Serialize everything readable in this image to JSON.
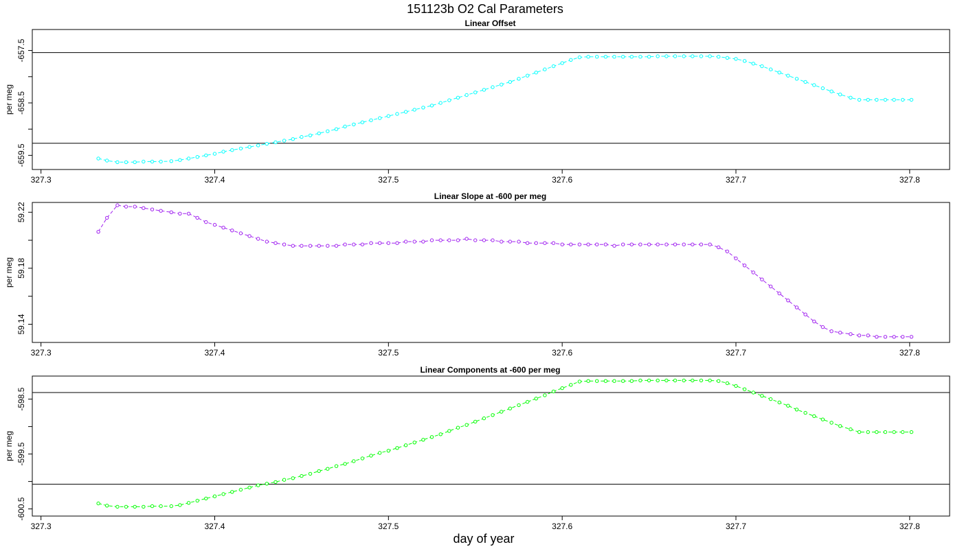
{
  "figure": {
    "title": "151123b   O2 Cal Parameters",
    "xlabel": "day of year"
  },
  "chart_data": [
    {
      "type": "line",
      "title": "Linear Offset",
      "ylabel": "per meg",
      "color": "#00ffff",
      "xlim": [
        327.295,
        327.823
      ],
      "ylim": [
        -659.77,
        -657.1
      ],
      "xticks": [
        327.3,
        327.4,
        327.5,
        327.6,
        327.7,
        327.8
      ],
      "xtick_labels": [
        "327.3",
        "327.4",
        "327.5",
        "327.6",
        "327.7",
        "327.8"
      ],
      "yticks": [
        -659.5,
        -659.0,
        -658.5,
        -658.0,
        -657.5
      ],
      "ytick_labels": [
        "-659.5",
        "",
        "-658.5",
        "",
        "-657.5"
      ],
      "hlines": [
        -657.54,
        -659.27
      ],
      "x": [
        327.333,
        327.338,
        327.344,
        327.349,
        327.354,
        327.359,
        327.364,
        327.369,
        327.375,
        327.38,
        327.385,
        327.39,
        327.395,
        327.4,
        327.405,
        327.41,
        327.415,
        327.42,
        327.425,
        327.43,
        327.435,
        327.44,
        327.445,
        327.45,
        327.455,
        327.46,
        327.465,
        327.47,
        327.475,
        327.48,
        327.485,
        327.49,
        327.495,
        327.5,
        327.505,
        327.51,
        327.515,
        327.52,
        327.525,
        327.53,
        327.535,
        327.54,
        327.545,
        327.55,
        327.555,
        327.56,
        327.565,
        327.57,
        327.575,
        327.58,
        327.585,
        327.59,
        327.595,
        327.6,
        327.605,
        327.61,
        327.615,
        327.62,
        327.625,
        327.63,
        327.635,
        327.64,
        327.645,
        327.65,
        327.655,
        327.66,
        327.665,
        327.67,
        327.675,
        327.68,
        327.685,
        327.69,
        327.695,
        327.7,
        327.705,
        327.71,
        327.715,
        327.72,
        327.725,
        327.73,
        327.735,
        327.74,
        327.745,
        327.75,
        327.755,
        327.76,
        327.766,
        327.771,
        327.776,
        327.781,
        327.786,
        327.791,
        327.796,
        327.801
      ],
      "y": [
        -659.56,
        -659.6,
        -659.63,
        -659.63,
        -659.63,
        -659.62,
        -659.62,
        -659.62,
        -659.61,
        -659.59,
        -659.56,
        -659.53,
        -659.5,
        -659.47,
        -659.43,
        -659.4,
        -659.37,
        -659.34,
        -659.31,
        -659.28,
        -659.25,
        -659.22,
        -659.19,
        -659.15,
        -659.12,
        -659.08,
        -659.04,
        -659.0,
        -658.95,
        -658.91,
        -658.87,
        -658.83,
        -658.79,
        -658.75,
        -658.71,
        -658.67,
        -658.63,
        -658.59,
        -658.55,
        -658.5,
        -658.45,
        -658.4,
        -658.35,
        -658.3,
        -658.25,
        -658.2,
        -658.15,
        -658.1,
        -658.04,
        -657.98,
        -657.92,
        -657.86,
        -657.8,
        -657.74,
        -657.68,
        -657.63,
        -657.62,
        -657.62,
        -657.62,
        -657.62,
        -657.62,
        -657.62,
        -657.62,
        -657.62,
        -657.61,
        -657.61,
        -657.61,
        -657.61,
        -657.61,
        -657.61,
        -657.61,
        -657.62,
        -657.64,
        -657.66,
        -657.7,
        -657.75,
        -657.8,
        -657.86,
        -657.92,
        -657.98,
        -658.04,
        -658.1,
        -658.16,
        -658.22,
        -658.28,
        -658.34,
        -658.4,
        -658.44,
        -658.44,
        -658.44,
        -658.44,
        -658.44,
        -658.44,
        -658.44
      ]
    },
    {
      "type": "line",
      "title": "Linear Slope at -600 per meg",
      "ylabel": "per meg",
      "color": "#a020f0",
      "xlim": [
        327.295,
        327.823
      ],
      "ylim": [
        59.127,
        59.227
      ],
      "xticks": [
        327.3,
        327.4,
        327.5,
        327.6,
        327.7,
        327.8
      ],
      "xtick_labels": [
        "327.3",
        "327.4",
        "327.5",
        "327.6",
        "327.7",
        "327.8"
      ],
      "yticks": [
        59.14,
        59.16,
        59.18,
        59.2,
        59.22
      ],
      "ytick_labels": [
        "59.14",
        "",
        "59.18",
        "",
        "59.22"
      ],
      "hlines": [],
      "x": [
        327.333,
        327.338,
        327.344,
        327.349,
        327.354,
        327.359,
        327.364,
        327.369,
        327.375,
        327.38,
        327.385,
        327.39,
        327.395,
        327.4,
        327.405,
        327.41,
        327.415,
        327.42,
        327.425,
        327.43,
        327.435,
        327.44,
        327.445,
        327.45,
        327.455,
        327.46,
        327.465,
        327.47,
        327.475,
        327.48,
        327.485,
        327.49,
        327.495,
        327.5,
        327.505,
        327.51,
        327.515,
        327.52,
        327.525,
        327.53,
        327.535,
        327.54,
        327.545,
        327.55,
        327.555,
        327.56,
        327.565,
        327.57,
        327.575,
        327.58,
        327.585,
        327.59,
        327.595,
        327.6,
        327.605,
        327.61,
        327.615,
        327.62,
        327.625,
        327.63,
        327.635,
        327.64,
        327.645,
        327.65,
        327.655,
        327.66,
        327.665,
        327.67,
        327.675,
        327.68,
        327.685,
        327.69,
        327.695,
        327.7,
        327.705,
        327.71,
        327.715,
        327.72,
        327.725,
        327.73,
        327.735,
        327.74,
        327.745,
        327.75,
        327.755,
        327.76,
        327.766,
        327.771,
        327.776,
        327.781,
        327.786,
        327.791,
        327.796,
        327.801
      ],
      "y": [
        59.206,
        59.216,
        59.225,
        59.224,
        59.224,
        59.223,
        59.222,
        59.221,
        59.22,
        59.219,
        59.219,
        59.216,
        59.213,
        59.211,
        59.209,
        59.207,
        59.205,
        59.203,
        59.201,
        59.199,
        59.198,
        59.197,
        59.196,
        59.196,
        59.196,
        59.196,
        59.196,
        59.196,
        59.197,
        59.197,
        59.197,
        59.198,
        59.198,
        59.198,
        59.198,
        59.199,
        59.199,
        59.199,
        59.2,
        59.2,
        59.2,
        59.2,
        59.201,
        59.2,
        59.2,
        59.2,
        59.199,
        59.199,
        59.199,
        59.198,
        59.198,
        59.198,
        59.198,
        59.197,
        59.197,
        59.197,
        59.197,
        59.197,
        59.197,
        59.196,
        59.197,
        59.197,
        59.197,
        59.197,
        59.197,
        59.197,
        59.197,
        59.197,
        59.197,
        59.197,
        59.197,
        59.195,
        59.192,
        59.187,
        59.182,
        59.177,
        59.172,
        59.167,
        59.162,
        59.157,
        59.152,
        59.147,
        59.142,
        59.138,
        59.135,
        59.134,
        59.133,
        59.132,
        59.132,
        59.131,
        59.131,
        59.131,
        59.131,
        59.131
      ]
    },
    {
      "type": "line",
      "title": "Linear Components at -600 per meg",
      "ylabel": "per meg",
      "color": "#00ff00",
      "xlim": [
        327.295,
        327.823
      ],
      "ylim": [
        -600.63,
        -598.08
      ],
      "xticks": [
        327.3,
        327.4,
        327.5,
        327.6,
        327.7,
        327.8
      ],
      "xtick_labels": [
        "327.3",
        "327.4",
        "327.5",
        "327.6",
        "327.7",
        "327.8"
      ],
      "yticks": [
        -600.5,
        -600.0,
        -599.5,
        -599.0,
        -598.5
      ],
      "ytick_labels": [
        "-600.5",
        "",
        "-599.5",
        "",
        "-598.5"
      ],
      "hlines": [
        -598.38,
        -600.05
      ],
      "x": [
        327.333,
        327.338,
        327.344,
        327.349,
        327.354,
        327.359,
        327.364,
        327.369,
        327.375,
        327.38,
        327.385,
        327.39,
        327.395,
        327.4,
        327.405,
        327.41,
        327.415,
        327.42,
        327.425,
        327.43,
        327.435,
        327.44,
        327.445,
        327.45,
        327.455,
        327.46,
        327.465,
        327.47,
        327.475,
        327.48,
        327.485,
        327.49,
        327.495,
        327.5,
        327.505,
        327.51,
        327.515,
        327.52,
        327.525,
        327.53,
        327.535,
        327.54,
        327.545,
        327.55,
        327.555,
        327.56,
        327.565,
        327.57,
        327.575,
        327.58,
        327.585,
        327.59,
        327.595,
        327.6,
        327.605,
        327.61,
        327.615,
        327.62,
        327.625,
        327.63,
        327.635,
        327.64,
        327.645,
        327.65,
        327.655,
        327.66,
        327.665,
        327.67,
        327.675,
        327.68,
        327.685,
        327.69,
        327.695,
        327.7,
        327.705,
        327.71,
        327.715,
        327.72,
        327.725,
        327.73,
        327.735,
        327.74,
        327.745,
        327.75,
        327.755,
        327.76,
        327.766,
        327.771,
        327.776,
        327.781,
        327.786,
        327.791,
        327.796,
        327.801
      ],
      "y": [
        -600.4,
        -600.44,
        -600.46,
        -600.46,
        -600.46,
        -600.46,
        -600.45,
        -600.45,
        -600.45,
        -600.43,
        -600.39,
        -600.35,
        -600.31,
        -600.27,
        -600.23,
        -600.19,
        -600.15,
        -600.11,
        -600.07,
        -600.04,
        -600.01,
        -599.97,
        -599.94,
        -599.9,
        -599.86,
        -599.81,
        -599.77,
        -599.72,
        -599.68,
        -599.63,
        -599.58,
        -599.53,
        -599.48,
        -599.44,
        -599.39,
        -599.34,
        -599.29,
        -599.24,
        -599.19,
        -599.14,
        -599.08,
        -599.02,
        -598.97,
        -598.91,
        -598.85,
        -598.79,
        -598.73,
        -598.67,
        -598.61,
        -598.55,
        -598.49,
        -598.43,
        -598.36,
        -598.3,
        -598.24,
        -598.18,
        -598.17,
        -598.17,
        -598.17,
        -598.17,
        -598.17,
        -598.17,
        -598.16,
        -598.16,
        -598.16,
        -598.16,
        -598.16,
        -598.16,
        -598.16,
        -598.16,
        -598.16,
        -598.17,
        -598.21,
        -598.26,
        -598.32,
        -598.38,
        -598.44,
        -598.5,
        -598.56,
        -598.62,
        -598.69,
        -598.75,
        -598.81,
        -598.87,
        -598.93,
        -598.99,
        -599.05,
        -599.1,
        -599.1,
        -599.1,
        -599.1,
        -599.1,
        -599.1,
        -599.1
      ]
    }
  ]
}
